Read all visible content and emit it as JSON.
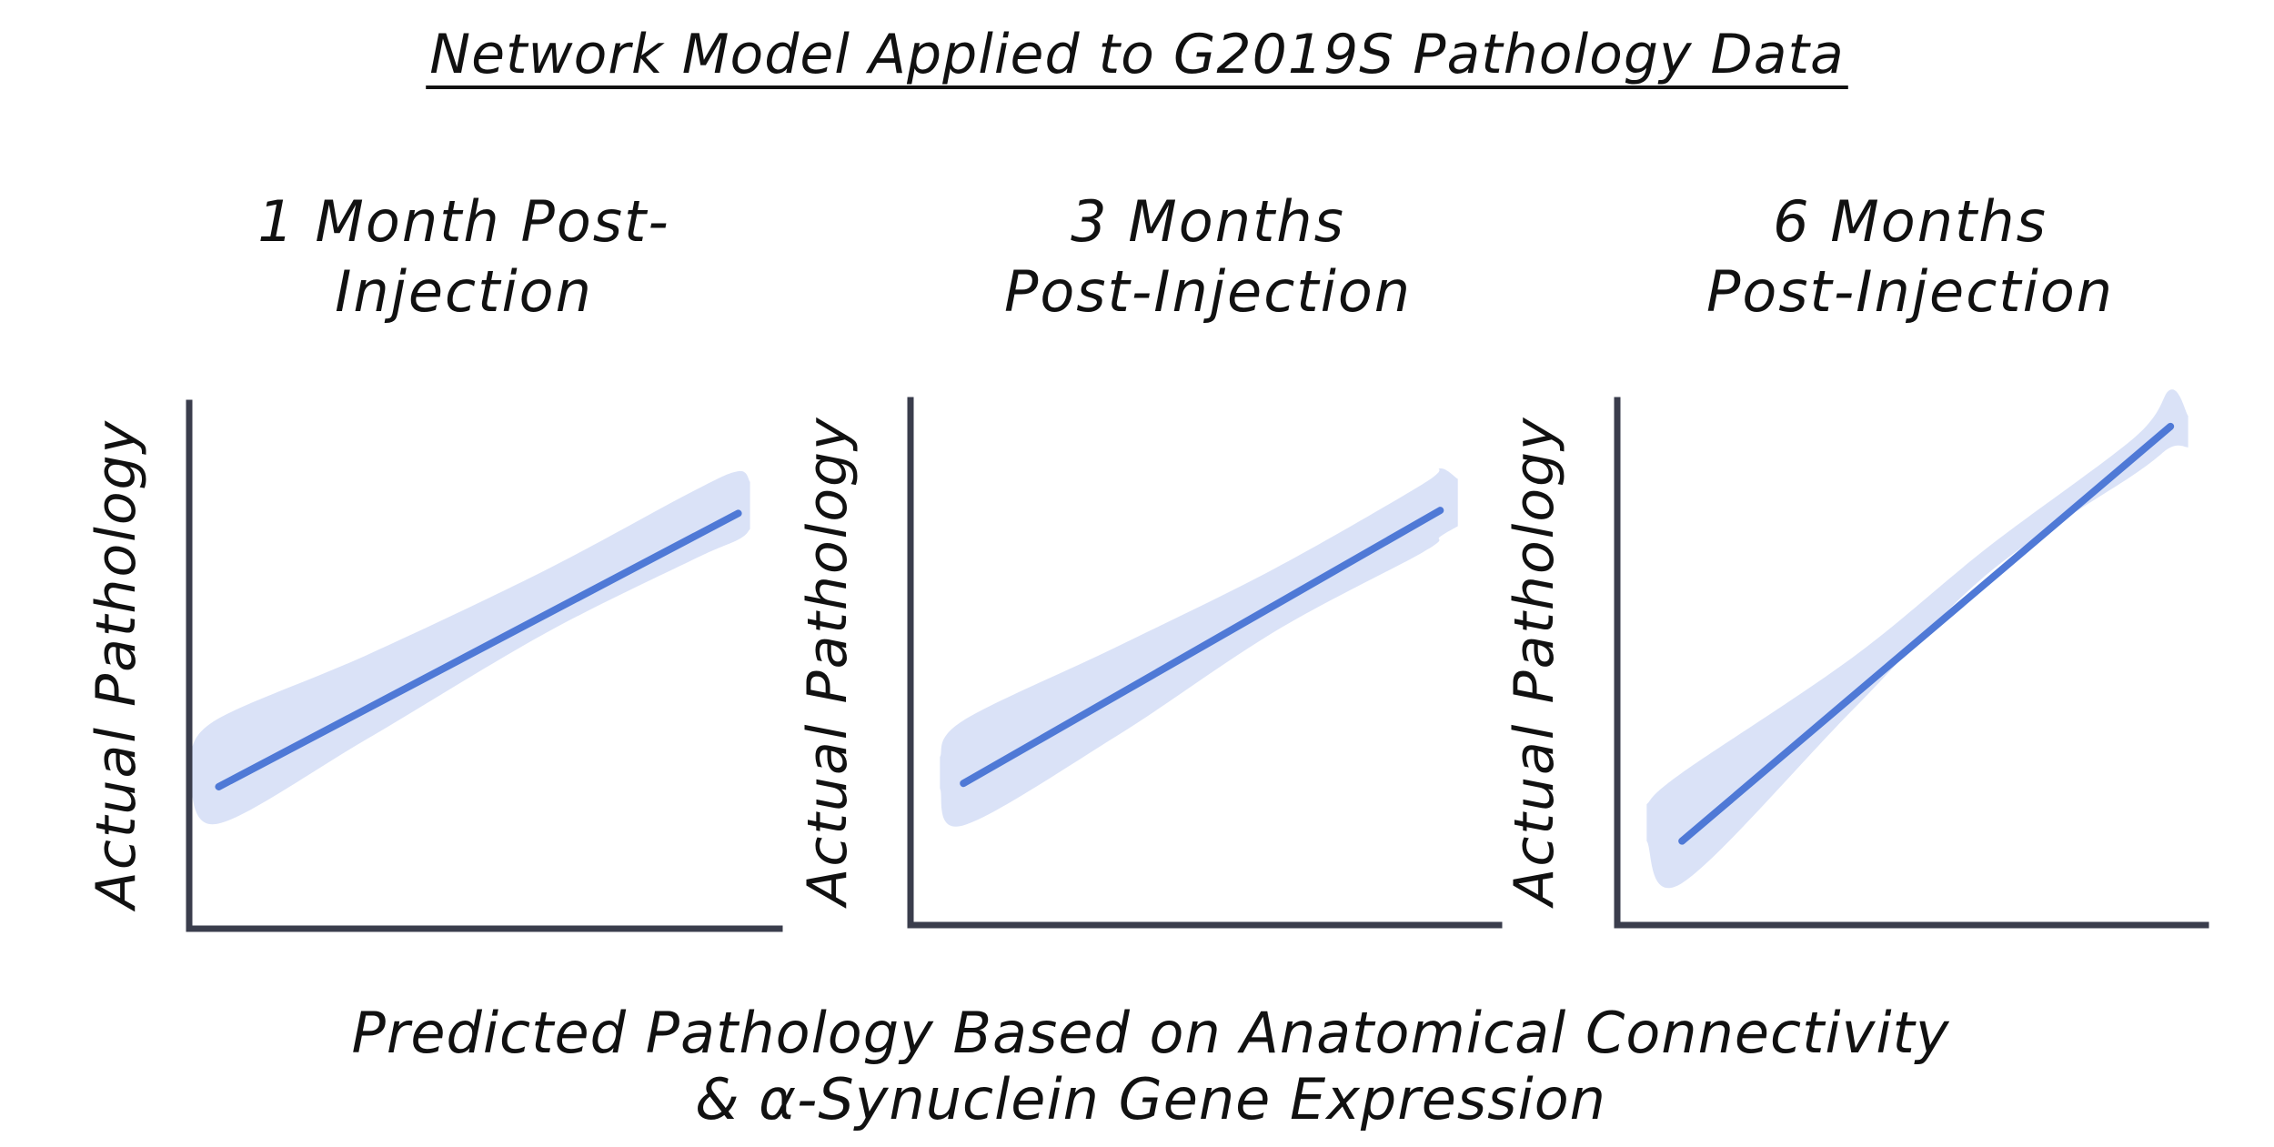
{
  "title": "Network Model Applied to G2019S Pathology Data",
  "xlabel_lines": [
    "Predicted Pathology Based on Anatomical Connectivity",
    "& α-Synuclein Gene Expression"
  ],
  "colors": {
    "fit_line": "#4f79d6",
    "band": "#cfdaf5",
    "axis": "#3a3d4c",
    "text": "#111111"
  },
  "chart_data": [
    {
      "type": "line",
      "title_lines": [
        "1 Month Post-",
        "Injection"
      ],
      "xlabel": "Predicted Pathology Based on Anatomical Connectivity & α-Synuclein Gene Expression",
      "ylabel": "Actual Pathology",
      "xlim": [
        0,
        1
      ],
      "ylim": [
        0,
        1
      ],
      "grid": false,
      "ticks": false,
      "series": [
        {
          "name": "regression fit",
          "x": [
            0.05,
            0.93
          ],
          "y": [
            0.27,
            0.79
          ]
        }
      ],
      "confidence_band": {
        "x": [
          0.0,
          0.05,
          0.3,
          0.6,
          0.85,
          0.93,
          0.95
        ],
        "upper": [
          0.33,
          0.4,
          0.52,
          0.68,
          0.83,
          0.87,
          0.85
        ],
        "lower": [
          0.28,
          0.2,
          0.36,
          0.56,
          0.7,
          0.74,
          0.76
        ]
      }
    },
    {
      "type": "line",
      "title_lines": [
        "3 Months",
        "Post-Injection"
      ],
      "xlabel": "Predicted Pathology Based on Anatomical Connectivity & α-Synuclein Gene Expression",
      "ylabel": "Actual Pathology",
      "xlim": [
        0,
        1
      ],
      "ylim": [
        0,
        1
      ],
      "grid": false,
      "ticks": false,
      "series": [
        {
          "name": "regression fit",
          "x": [
            0.09,
            0.9
          ],
          "y": [
            0.27,
            0.79
          ]
        }
      ],
      "confidence_band": {
        "x": [
          0.05,
          0.09,
          0.35,
          0.62,
          0.87,
          0.9,
          0.93
        ],
        "upper": [
          0.32,
          0.39,
          0.53,
          0.68,
          0.84,
          0.87,
          0.85
        ],
        "lower": [
          0.26,
          0.19,
          0.36,
          0.56,
          0.71,
          0.74,
          0.76
        ]
      }
    },
    {
      "type": "line",
      "title_lines": [
        "6 Months",
        "Post-Injection"
      ],
      "xlabel": "Predicted Pathology Based on Anatomical Connectivity & α-Synuclein Gene Expression",
      "ylabel": "Actual Pathology",
      "xlim": [
        0,
        1
      ],
      "ylim": [
        0,
        1
      ],
      "grid": false,
      "ticks": false,
      "series": [
        {
          "name": "regression fit",
          "x": [
            0.11,
            0.94
          ],
          "y": [
            0.16,
            0.95
          ]
        }
      ],
      "confidence_band": {
        "x": [
          0.05,
          0.11,
          0.4,
          0.63,
          0.88,
          0.94,
          0.97
        ],
        "upper": [
          0.23,
          0.29,
          0.51,
          0.72,
          0.93,
          1.02,
          0.97
        ],
        "lower": [
          0.16,
          0.08,
          0.41,
          0.67,
          0.86,
          0.91,
          0.91
        ]
      }
    }
  ]
}
